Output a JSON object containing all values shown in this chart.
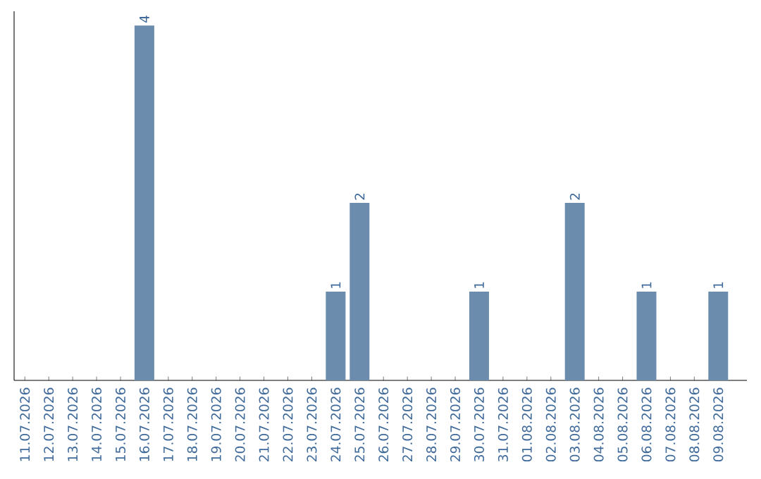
{
  "chart_data": {
    "type": "bar",
    "categories": [
      "11.07.2026",
      "12.07.2026",
      "13.07.2026",
      "14.07.2026",
      "15.07.2026",
      "16.07.2026",
      "17.07.2026",
      "18.07.2026",
      "19.07.2026",
      "20.07.2026",
      "21.07.2026",
      "22.07.2026",
      "23.07.2026",
      "24.07.2026",
      "25.07.2026",
      "26.07.2026",
      "27.07.2026",
      "28.07.2026",
      "29.07.2026",
      "30.07.2026",
      "31.07.2026",
      "01.08.2026",
      "02.08.2026",
      "03.08.2026",
      "04.08.2026",
      "05.08.2026",
      "06.08.2026",
      "07.08.2026",
      "08.08.2026",
      "09.08.2026"
    ],
    "values": [
      0,
      0,
      0,
      0,
      0,
      4,
      0,
      0,
      0,
      0,
      0,
      0,
      0,
      1,
      2,
      0,
      0,
      0,
      0,
      1,
      0,
      0,
      0,
      2,
      0,
      0,
      1,
      0,
      0,
      1
    ],
    "value_labels": [
      null,
      null,
      null,
      null,
      null,
      "4",
      null,
      null,
      null,
      null,
      null,
      null,
      null,
      "1",
      "2",
      null,
      null,
      null,
      null,
      "1",
      null,
      null,
      null,
      "2",
      null,
      null,
      "1",
      null,
      null,
      "1"
    ],
    "color": "#6b8cac"
  }
}
